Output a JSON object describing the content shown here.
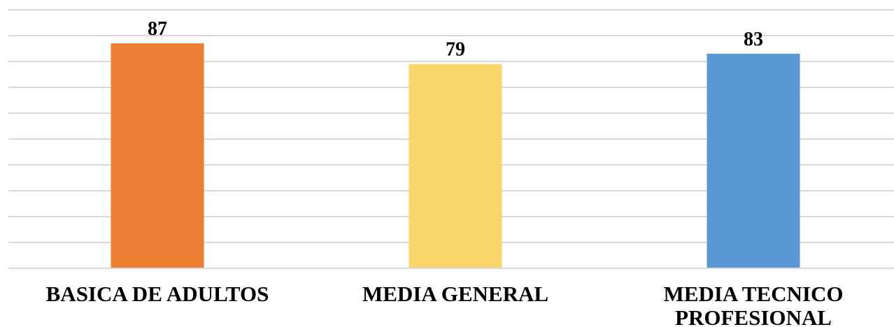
{
  "chart_data": {
    "type": "bar",
    "categories": [
      "BASICA DE ADULTOS",
      "MEDIA GENERAL",
      "MEDIA TECNICO PROFESIONAL"
    ],
    "category_lines": [
      [
        "BASICA DE ADULTOS"
      ],
      [
        "MEDIA GENERAL"
      ],
      [
        "MEDIA TECNICO",
        "PROFESIONAL"
      ]
    ],
    "values": [
      87,
      79,
      83
    ],
    "data_labels": [
      "87",
      "79",
      "83"
    ],
    "colors": [
      "#ed7d31",
      "#fad56a",
      "#5b97d5"
    ],
    "title": "",
    "xlabel": "",
    "ylabel": "",
    "ylim": [
      0,
      100
    ],
    "gridlines": true,
    "legend": "none"
  }
}
